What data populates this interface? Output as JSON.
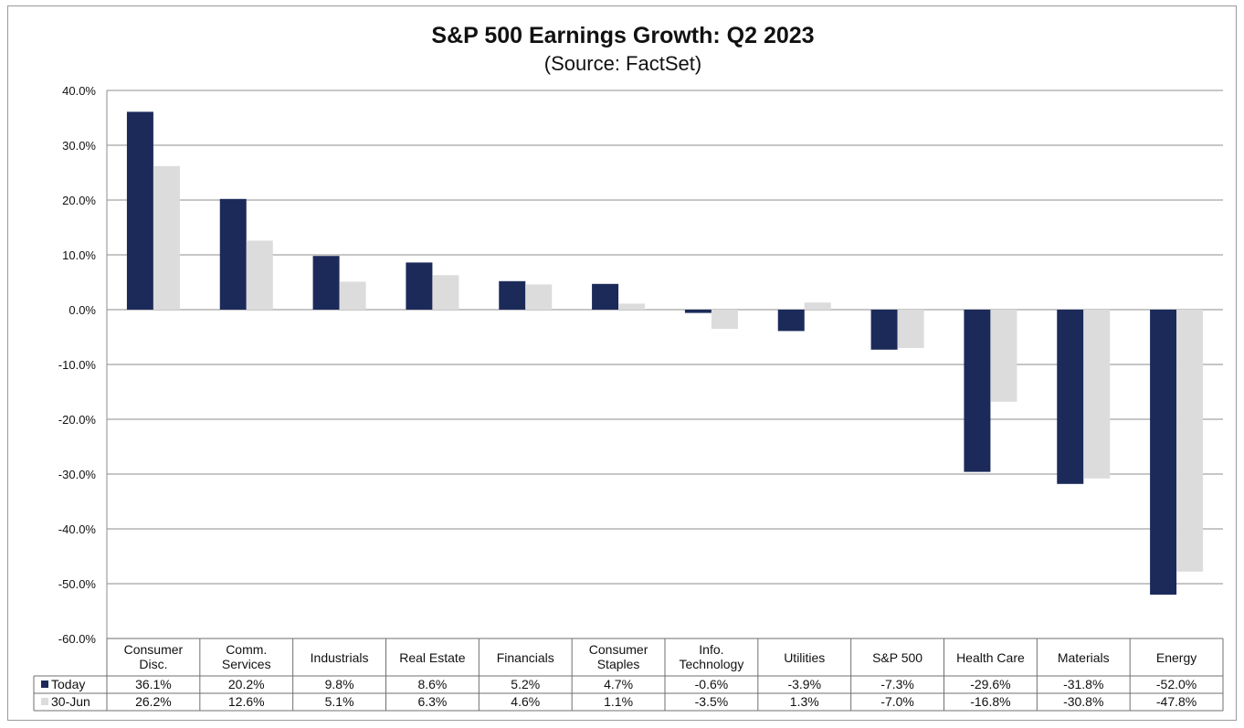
{
  "chart_data": {
    "type": "bar",
    "title": "S&P 500 Earnings Growth: Q2 2023",
    "subtitle": "(Source: FactSet)",
    "categories": [
      [
        "Consumer",
        "Disc."
      ],
      [
        "Comm.",
        "Services"
      ],
      [
        "Industrials"
      ],
      [
        "Real Estate"
      ],
      [
        "Financials"
      ],
      [
        "Consumer",
        "Staples"
      ],
      [
        "Info.",
        "Technology"
      ],
      [
        "Utilities"
      ],
      [
        "S&P 500"
      ],
      [
        "Health Care"
      ],
      [
        "Materials"
      ],
      [
        "Energy"
      ]
    ],
    "series": [
      {
        "name": "Today",
        "color": "#1c2a5a",
        "values": [
          36.1,
          20.2,
          9.8,
          8.6,
          5.2,
          4.7,
          -0.6,
          -3.9,
          -7.3,
          -29.6,
          -31.8,
          -52.0
        ],
        "labels": [
          "36.1%",
          "20.2%",
          "9.8%",
          "8.6%",
          "5.2%",
          "4.7%",
          "-0.6%",
          "-3.9%",
          "-7.3%",
          "-29.6%",
          "-31.8%",
          "-52.0%"
        ]
      },
      {
        "name": "30-Jun",
        "color": "#dcdcdc",
        "values": [
          26.2,
          12.6,
          5.1,
          6.3,
          4.6,
          1.1,
          -3.5,
          1.3,
          -7.0,
          -16.8,
          -30.8,
          -47.8
        ],
        "labels": [
          "26.2%",
          "12.6%",
          "5.1%",
          "6.3%",
          "4.6%",
          "1.1%",
          "-3.5%",
          "1.3%",
          "-7.0%",
          "-16.8%",
          "-30.8%",
          "-47.8%"
        ]
      }
    ],
    "ylim": [
      -60,
      40
    ],
    "yticks": [
      40,
      30,
      20,
      10,
      0,
      -10,
      -20,
      -30,
      -40,
      -50,
      -60
    ],
    "ytick_labels": [
      "40.0%",
      "30.0%",
      "20.0%",
      "10.0%",
      "0.0%",
      "-10.0%",
      "-20.0%",
      "-30.0%",
      "-40.0%",
      "-50.0%",
      "-60.0%"
    ],
    "grid": true,
    "legend": "data-table",
    "xlabel": "",
    "ylabel": ""
  }
}
